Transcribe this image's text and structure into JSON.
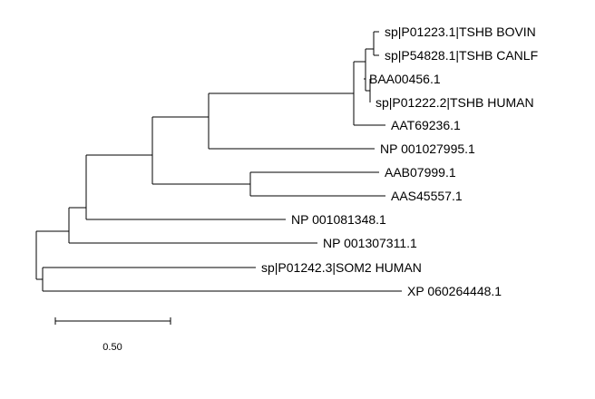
{
  "tree": {
    "leaves": [
      "sp|P01223.1|TSHB BOVIN",
      "sp|P54828.1|TSHB CANLF",
      "BAA00456.1",
      "sp|P01222.2|TSHB HUMAN",
      "AAT69236.1",
      "NP 001027995.1",
      "AAB07999.1",
      "AAS45557.1",
      "NP 001081348.1",
      "NP 001307311.1",
      "sp|P01242.3|SOM2 HUMAN",
      "XP 060264448.1"
    ],
    "scale_bar_label": "0.50",
    "line_color": "#000000"
  }
}
